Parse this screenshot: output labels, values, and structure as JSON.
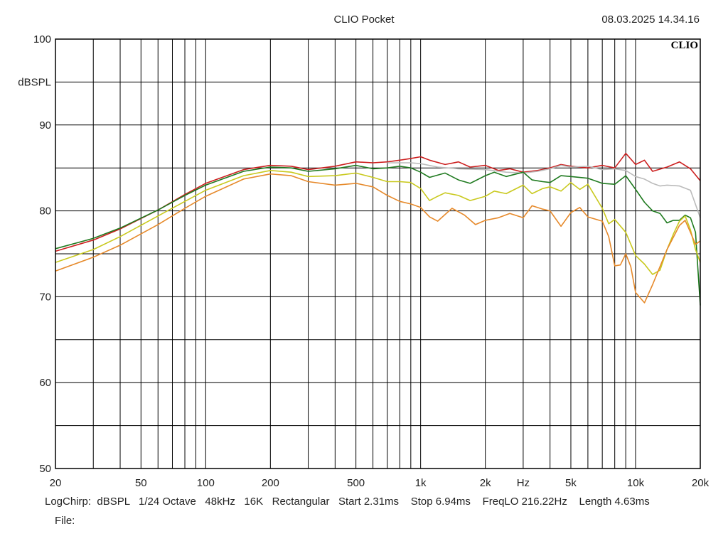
{
  "header": {
    "title": "CLIO Pocket",
    "datetime": "08.03.2025 14.34.16",
    "brand": "CLIO"
  },
  "footer": {
    "info": "LogChirp:  dBSPL   1/24 Octave   48kHz   16K   Rectangular   Start 2.31ms    Stop 6.94ms    FreqLO 216.22Hz    Length 4.63ms",
    "file_label": "File:"
  },
  "chart_data": {
    "type": "line",
    "title": "",
    "xlabel": "Hz",
    "ylabel": "dBSPL",
    "xscale": "log",
    "xlim": [
      20,
      20000
    ],
    "ylim": [
      50,
      100
    ],
    "grid": true,
    "legend": "none",
    "x_tick_labels": [
      "20",
      "50",
      "100",
      "200",
      "500",
      "1k",
      "2k",
      "Hz",
      "5k",
      "10k",
      "20k"
    ],
    "y_tick_labels": [
      "100",
      "dBSPL",
      "90",
      "80",
      "70",
      "60",
      "50"
    ],
    "series": [
      {
        "color": "#cc1f1f",
        "points": [
          [
            20,
            75.3
          ],
          [
            30,
            76.6
          ],
          [
            40,
            77.9
          ],
          [
            60,
            80.1
          ],
          [
            80,
            81.9
          ],
          [
            100,
            83.2
          ],
          [
            150,
            84.8
          ],
          [
            200,
            85.3
          ],
          [
            250,
            85.2
          ],
          [
            300,
            84.8
          ],
          [
            400,
            85.2
          ],
          [
            500,
            85.7
          ],
          [
            600,
            85.6
          ],
          [
            700,
            85.7
          ],
          [
            800,
            85.9
          ],
          [
            900,
            86.1
          ],
          [
            1000,
            86.3
          ],
          [
            1100,
            85.9
          ],
          [
            1300,
            85.4
          ],
          [
            1500,
            85.7
          ],
          [
            1700,
            85.1
          ],
          [
            2000,
            85.3
          ],
          [
            2300,
            84.7
          ],
          [
            2600,
            84.9
          ],
          [
            3000,
            84.5
          ],
          [
            3500,
            84.7
          ],
          [
            4000,
            85.0
          ],
          [
            4500,
            85.4
          ],
          [
            5000,
            85.2
          ],
          [
            6000,
            85.0
          ],
          [
            7000,
            85.3
          ],
          [
            8000,
            85.0
          ],
          [
            9000,
            86.7
          ],
          [
            10000,
            85.4
          ],
          [
            11000,
            85.9
          ],
          [
            12000,
            84.6
          ],
          [
            14000,
            85.1
          ],
          [
            16000,
            85.7
          ],
          [
            18000,
            84.9
          ],
          [
            20000,
            83.5
          ]
        ]
      },
      {
        "color": "#bbbbbb",
        "points": [
          [
            700,
            85.6
          ],
          [
            800,
            85.6
          ],
          [
            900,
            85.6
          ],
          [
            1000,
            85.5
          ],
          [
            1200,
            85.1
          ],
          [
            1500,
            84.9
          ],
          [
            2000,
            84.8
          ],
          [
            2500,
            84.5
          ],
          [
            3000,
            84.4
          ],
          [
            3500,
            84.6
          ],
          [
            4000,
            84.9
          ],
          [
            4500,
            85.3
          ],
          [
            5000,
            85.1
          ],
          [
            6000,
            85.2
          ],
          [
            7000,
            84.8
          ],
          [
            8000,
            84.9
          ],
          [
            9000,
            84.7
          ],
          [
            10000,
            84.0
          ],
          [
            11000,
            83.7
          ],
          [
            12000,
            83.2
          ],
          [
            13000,
            82.9
          ],
          [
            14000,
            83.0
          ],
          [
            16000,
            82.9
          ],
          [
            18000,
            82.4
          ],
          [
            20000,
            79.2
          ]
        ]
      },
      {
        "color": "#1f7a1f",
        "points": [
          [
            20,
            75.6
          ],
          [
            30,
            76.8
          ],
          [
            40,
            78.0
          ],
          [
            60,
            80.1
          ],
          [
            80,
            81.8
          ],
          [
            100,
            83.0
          ],
          [
            150,
            84.6
          ],
          [
            200,
            85.1
          ],
          [
            250,
            85.0
          ],
          [
            300,
            84.6
          ],
          [
            400,
            84.9
          ],
          [
            500,
            85.3
          ],
          [
            600,
            84.9
          ],
          [
            700,
            85.0
          ],
          [
            800,
            85.2
          ],
          [
            900,
            85.0
          ],
          [
            1000,
            84.5
          ],
          [
            1100,
            83.9
          ],
          [
            1300,
            84.4
          ],
          [
            1500,
            83.6
          ],
          [
            1700,
            83.2
          ],
          [
            2000,
            84.1
          ],
          [
            2200,
            84.5
          ],
          [
            2500,
            84.0
          ],
          [
            3000,
            84.5
          ],
          [
            3300,
            83.6
          ],
          [
            3700,
            83.4
          ],
          [
            4000,
            83.3
          ],
          [
            4500,
            84.1
          ],
          [
            5000,
            84.0
          ],
          [
            6000,
            83.8
          ],
          [
            7000,
            83.2
          ],
          [
            8000,
            83.1
          ],
          [
            9000,
            84.1
          ],
          [
            10000,
            82.5
          ],
          [
            11000,
            81.0
          ],
          [
            12000,
            80.0
          ],
          [
            13000,
            79.7
          ],
          [
            14000,
            78.6
          ],
          [
            15000,
            78.9
          ],
          [
            16000,
            78.9
          ],
          [
            17000,
            79.5
          ],
          [
            18000,
            79.2
          ],
          [
            19000,
            77.5
          ],
          [
            20000,
            69.0
          ]
        ]
      },
      {
        "color": "#c9c91e",
        "points": [
          [
            20,
            74.0
          ],
          [
            30,
            75.5
          ],
          [
            40,
            77.0
          ],
          [
            60,
            79.4
          ],
          [
            80,
            81.1
          ],
          [
            100,
            82.4
          ],
          [
            150,
            84.1
          ],
          [
            200,
            84.7
          ],
          [
            250,
            84.5
          ],
          [
            300,
            84.0
          ],
          [
            400,
            84.1
          ],
          [
            500,
            84.4
          ],
          [
            600,
            83.9
          ],
          [
            700,
            83.4
          ],
          [
            800,
            83.4
          ],
          [
            900,
            83.3
          ],
          [
            1000,
            82.6
          ],
          [
            1100,
            81.2
          ],
          [
            1200,
            81.7
          ],
          [
            1300,
            82.1
          ],
          [
            1500,
            81.8
          ],
          [
            1700,
            81.2
          ],
          [
            2000,
            81.7
          ],
          [
            2200,
            82.3
          ],
          [
            2500,
            82.0
          ],
          [
            3000,
            83.0
          ],
          [
            3300,
            82.0
          ],
          [
            3700,
            82.6
          ],
          [
            4000,
            82.8
          ],
          [
            4500,
            82.3
          ],
          [
            5000,
            83.3
          ],
          [
            5500,
            82.5
          ],
          [
            6000,
            83.1
          ],
          [
            7000,
            80.3
          ],
          [
            7500,
            78.5
          ],
          [
            8000,
            79.0
          ],
          [
            9000,
            77.5
          ],
          [
            10000,
            74.8
          ],
          [
            11000,
            73.8
          ],
          [
            12000,
            72.6
          ],
          [
            13000,
            73.1
          ],
          [
            14000,
            75.5
          ],
          [
            15000,
            77.3
          ],
          [
            16000,
            78.8
          ],
          [
            17000,
            79.4
          ],
          [
            18000,
            77.8
          ],
          [
            19000,
            75.5
          ],
          [
            20000,
            74.0
          ]
        ]
      },
      {
        "color": "#e6892a",
        "points": [
          [
            20,
            73.0
          ],
          [
            30,
            74.6
          ],
          [
            40,
            76.0
          ],
          [
            60,
            78.4
          ],
          [
            80,
            80.3
          ],
          [
            100,
            81.7
          ],
          [
            150,
            83.7
          ],
          [
            200,
            84.3
          ],
          [
            250,
            84.1
          ],
          [
            300,
            83.4
          ],
          [
            400,
            83.0
          ],
          [
            500,
            83.2
          ],
          [
            600,
            82.8
          ],
          [
            700,
            81.8
          ],
          [
            800,
            81.1
          ],
          [
            900,
            80.8
          ],
          [
            1000,
            80.4
          ],
          [
            1100,
            79.3
          ],
          [
            1200,
            78.8
          ],
          [
            1400,
            80.3
          ],
          [
            1600,
            79.5
          ],
          [
            1800,
            78.4
          ],
          [
            2000,
            78.9
          ],
          [
            2300,
            79.2
          ],
          [
            2600,
            79.7
          ],
          [
            3000,
            79.2
          ],
          [
            3300,
            80.6
          ],
          [
            3700,
            80.2
          ],
          [
            4000,
            80.0
          ],
          [
            4500,
            78.2
          ],
          [
            5000,
            79.8
          ],
          [
            5500,
            80.4
          ],
          [
            6000,
            79.3
          ],
          [
            7000,
            78.8
          ],
          [
            7500,
            77.0
          ],
          [
            8000,
            73.6
          ],
          [
            8500,
            73.7
          ],
          [
            9000,
            75.0
          ],
          [
            9500,
            73.5
          ],
          [
            10000,
            70.5
          ],
          [
            11000,
            69.3
          ],
          [
            12000,
            71.4
          ],
          [
            14000,
            75.5
          ],
          [
            16000,
            78.3
          ],
          [
            17000,
            78.9
          ],
          [
            18000,
            77.5
          ],
          [
            19000,
            76.1
          ],
          [
            20000,
            76.5
          ]
        ]
      }
    ]
  }
}
